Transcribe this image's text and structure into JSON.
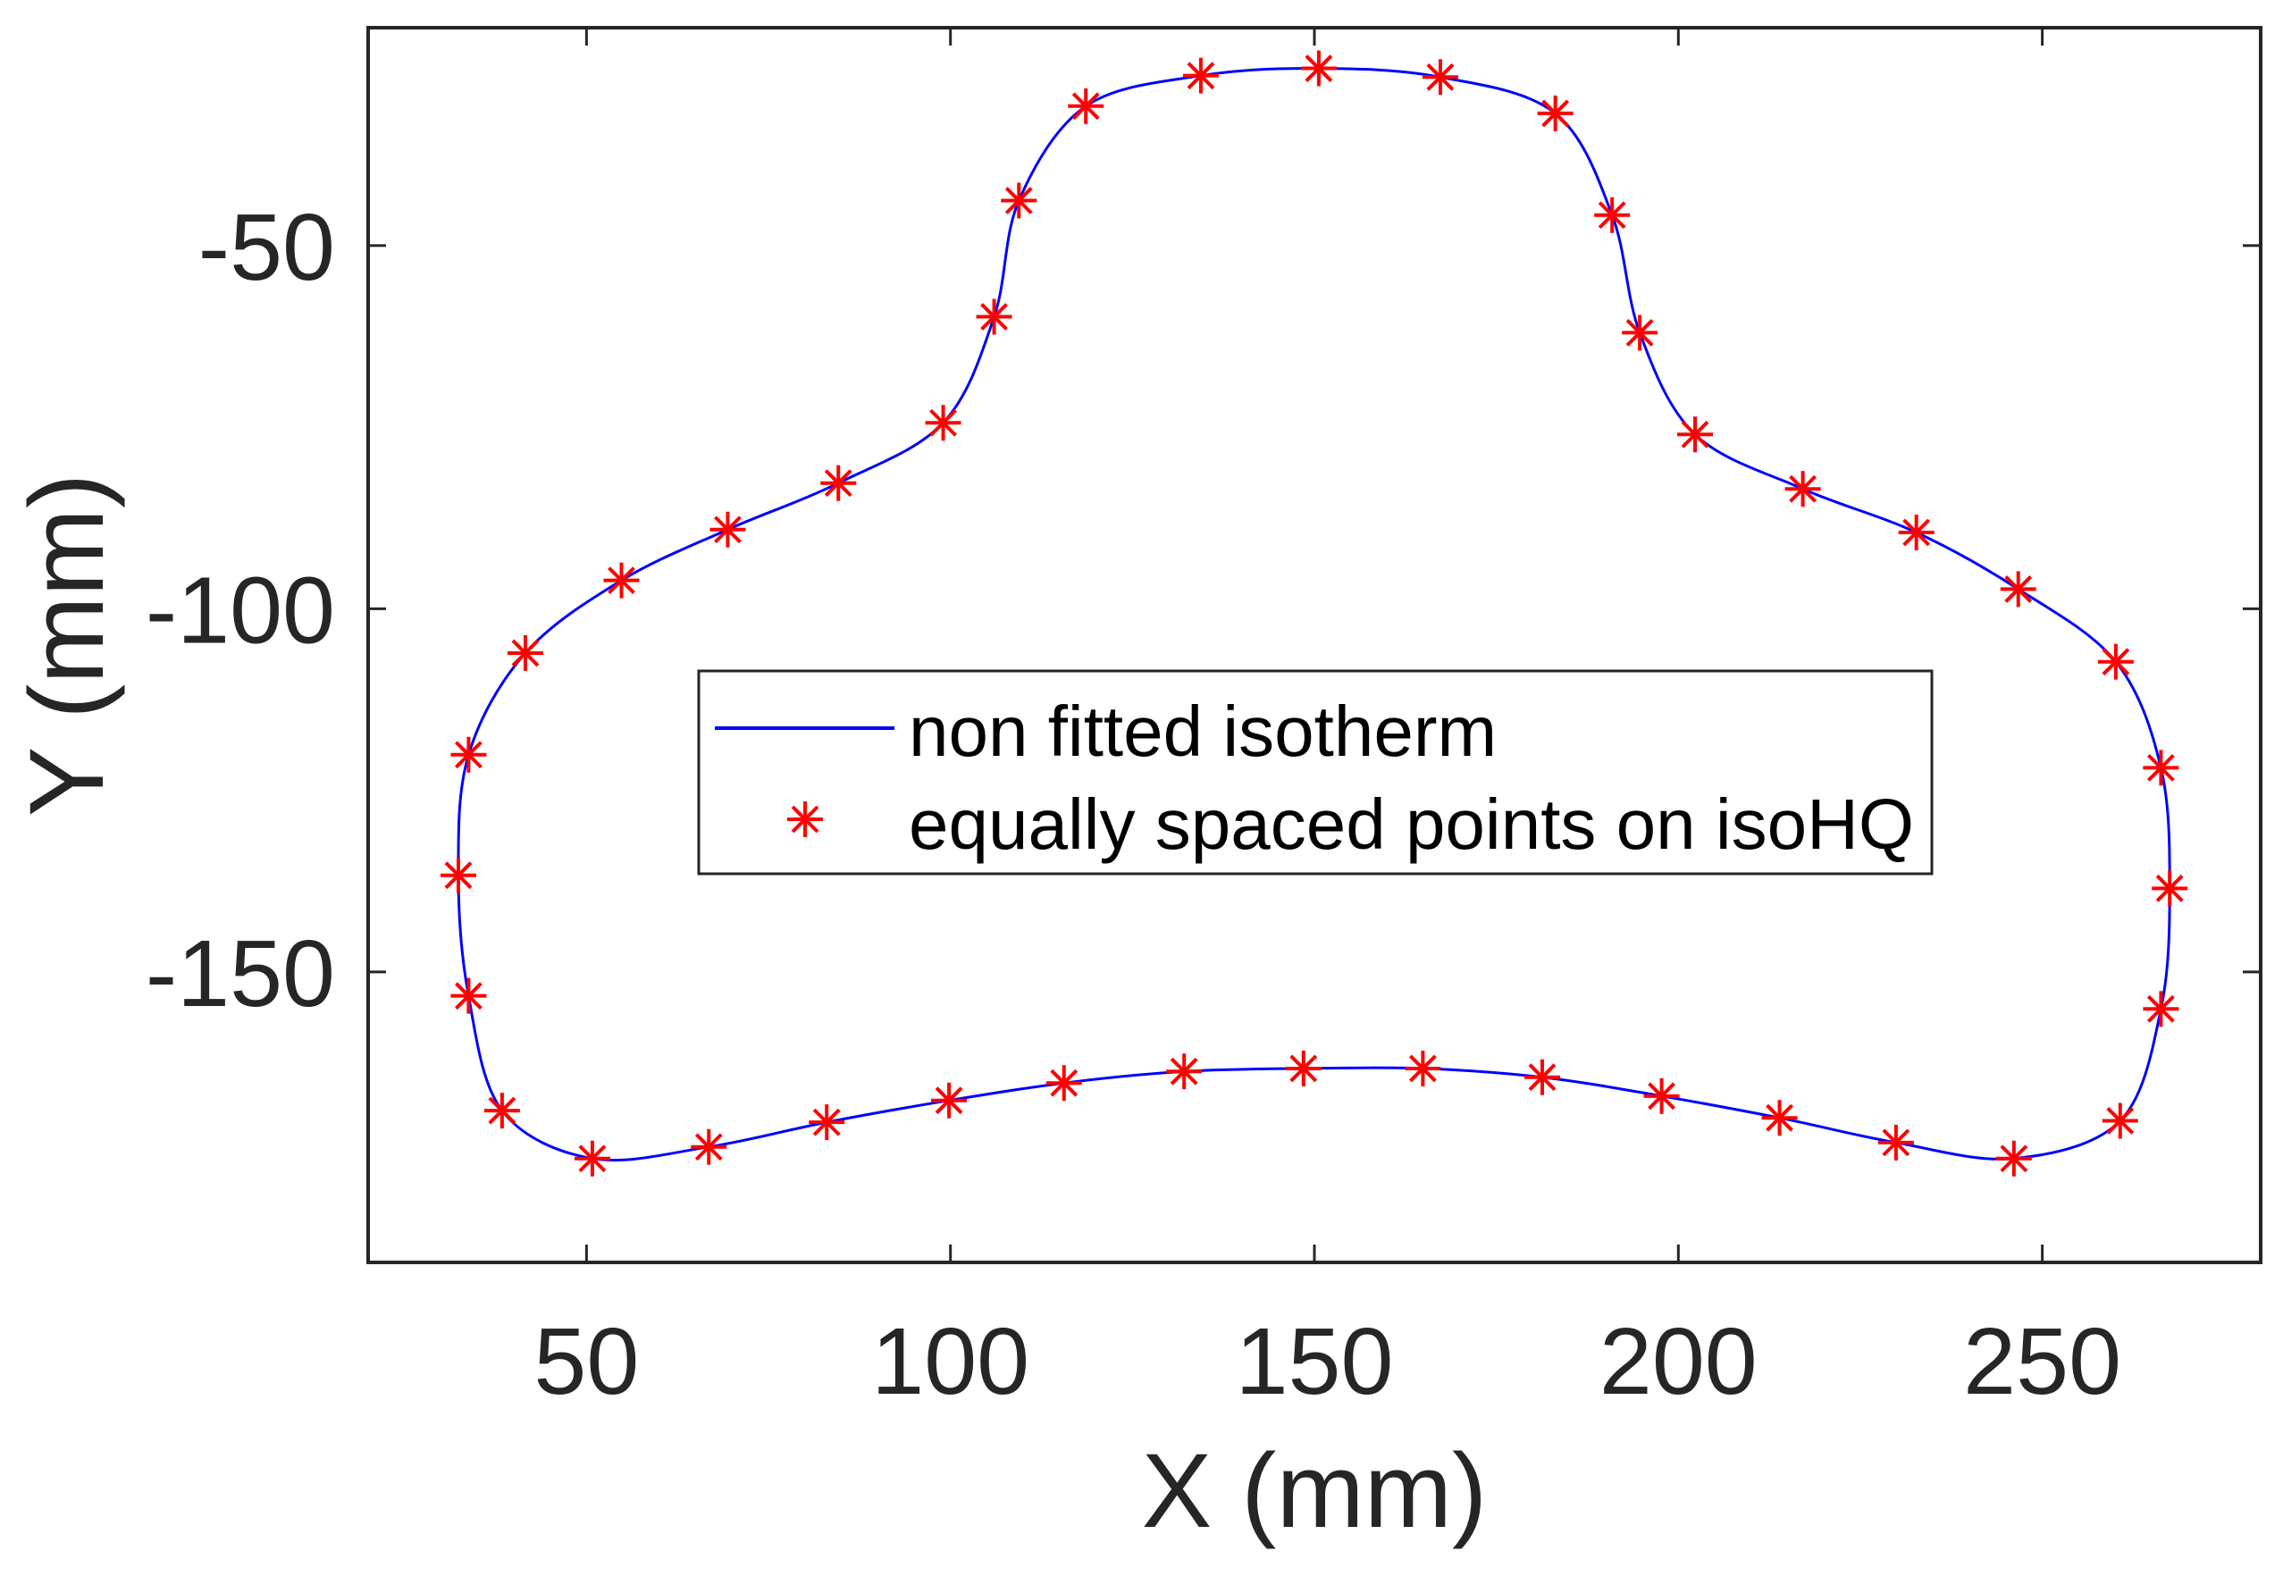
{
  "chart_data": {
    "type": "line",
    "title": "",
    "xlabel": "X (mm)",
    "ylabel": "Y (mm)",
    "xlim": [
      20,
      280
    ],
    "ylim": [
      -190,
      -20
    ],
    "xticks": [
      50,
      100,
      150,
      200,
      250
    ],
    "yticks": [
      -50,
      -100,
      -150
    ],
    "xtick_labels": [
      "50",
      "100",
      "150",
      "200",
      "250"
    ],
    "ytick_labels": [
      "-50",
      "-100",
      "-150"
    ],
    "grid": false,
    "legend_position": "center (inside axes)",
    "aspect": "equal",
    "series": [
      {
        "name": "non fitted isotherm",
        "style": "line",
        "color": "#0000ff",
        "closed": true,
        "note": "smooth closed contour passing through the marker points"
      },
      {
        "name": "equally spaced points on isoHQ",
        "style": "marker",
        "marker": "asterisk",
        "color": "#ff0000",
        "x": [
          150.6,
          167.3,
          183.1,
          190.9,
          194.7,
          202.3,
          217.1,
          232.7,
          246.7,
          260.1,
          266.3,
          267.5,
          266.3,
          260.7,
          246.1,
          229.9,
          213.9,
          197.7,
          181.3,
          164.9,
          148.5,
          132.1,
          115.6,
          99.8,
          83.0,
          66.8,
          50.8,
          38.4,
          33.8,
          32.4,
          33.8,
          41.6,
          54.8,
          69.4,
          84.6,
          99.0,
          106.0,
          109.4,
          118.6,
          134.4
        ],
        "y": [
          -25.6,
          -26.8,
          -31.8,
          -45.8,
          -62.0,
          -76.0,
          -83.5,
          -89.5,
          -97.3,
          -107.3,
          -121.9,
          -138.5,
          -155.1,
          -170.5,
          -175.7,
          -173.5,
          -170.1,
          -167.1,
          -164.5,
          -163.3,
          -163.3,
          -163.7,
          -165.3,
          -167.7,
          -170.7,
          -174.1,
          -175.7,
          -169.1,
          -153.3,
          -136.7,
          -120.1,
          -106.1,
          -96.1,
          -89.1,
          -82.7,
          -74.4,
          -59.8,
          -43.8,
          -30.8,
          -26.6
        ]
      }
    ]
  },
  "legend": {
    "items": [
      {
        "label": "non fitted isotherm",
        "symbol": "line",
        "color": "#0000ff"
      },
      {
        "label": "equally spaced points on isoHQ",
        "symbol": "asterisk",
        "color": "#ff0000"
      }
    ]
  },
  "colors": {
    "axis": "#262626",
    "line": "#0000ff",
    "marker": "#ff0000",
    "background": "#ffffff"
  }
}
